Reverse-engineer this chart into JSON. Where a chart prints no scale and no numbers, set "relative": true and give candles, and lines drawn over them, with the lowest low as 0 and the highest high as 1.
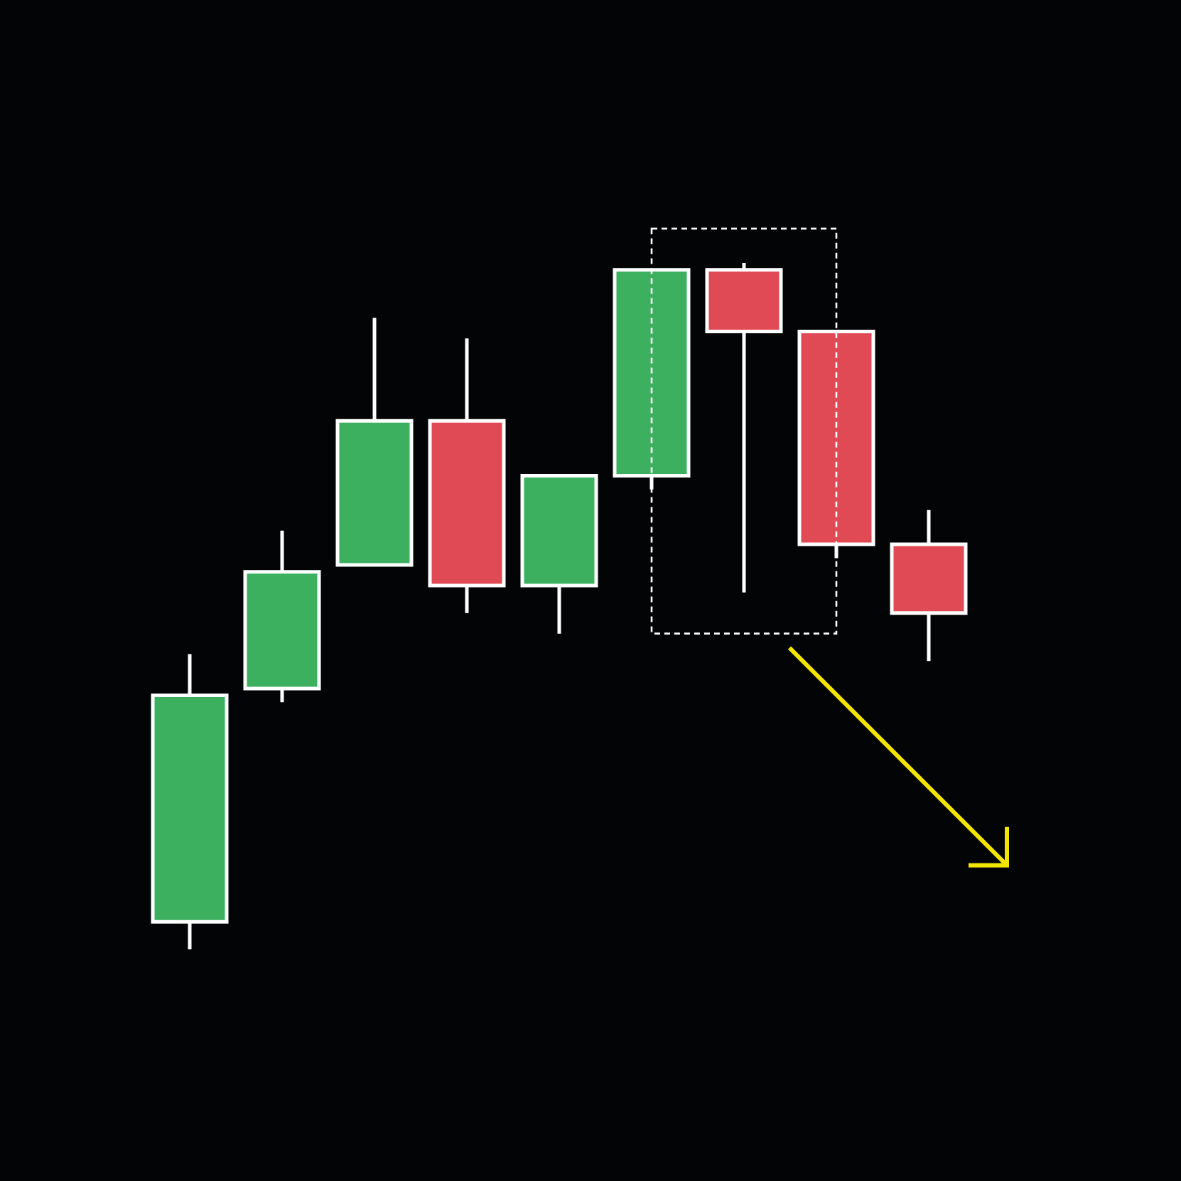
{
  "chart_data": {
    "type": "candlestick",
    "relative": true,
    "categories": [
      null,
      null,
      null,
      null,
      null,
      null,
      null,
      null,
      null
    ],
    "ohlc": [
      [
        0.04,
        0.43,
        0,
        0.37
      ],
      [
        0.38,
        0.61,
        0.36,
        0.55
      ],
      [
        0.56,
        0.92,
        0.56,
        0.77
      ],
      [
        0.77,
        0.89,
        0.49,
        0.53
      ],
      [
        0.53,
        0.69,
        0.46,
        0.69
      ],
      [
        0.69,
        0.99,
        0.67,
        0.99
      ],
      [
        0.99,
        1,
        0.52,
        0.9
      ],
      [
        0.9,
        0.9,
        0.57,
        0.59
      ],
      [
        0.59,
        0.64,
        0.42,
        0.49
      ]
    ],
    "colors": [
      "#3db060",
      "#3db060",
      "#3db060",
      "#e04a54",
      "#3db060",
      "#3db060",
      "#e04a54",
      "#e04a54",
      "#e04a54"
    ]
  }
}
